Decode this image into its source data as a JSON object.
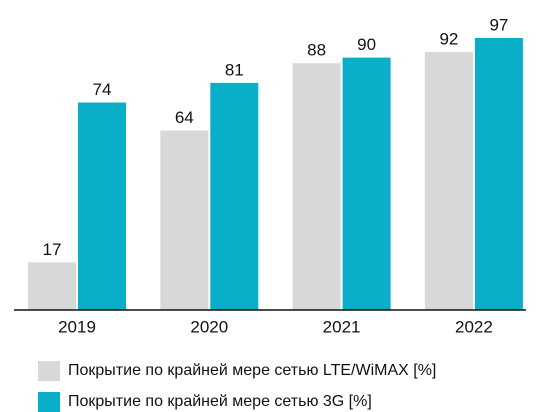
{
  "chart_data": {
    "type": "bar",
    "categories": [
      "2019",
      "2020",
      "2021",
      "2022"
    ],
    "series": [
      {
        "name": "Покрытие по крайней мере сетью LTE/WiMAX [%]",
        "color": "#d6d8da",
        "values": [
          17,
          64,
          88,
          92
        ]
      },
      {
        "name": "Покрытие по крайней мере сетью 3G [%]",
        "color": "#0aaec9",
        "values": [
          74,
          81,
          90,
          97
        ]
      }
    ]
  }
}
